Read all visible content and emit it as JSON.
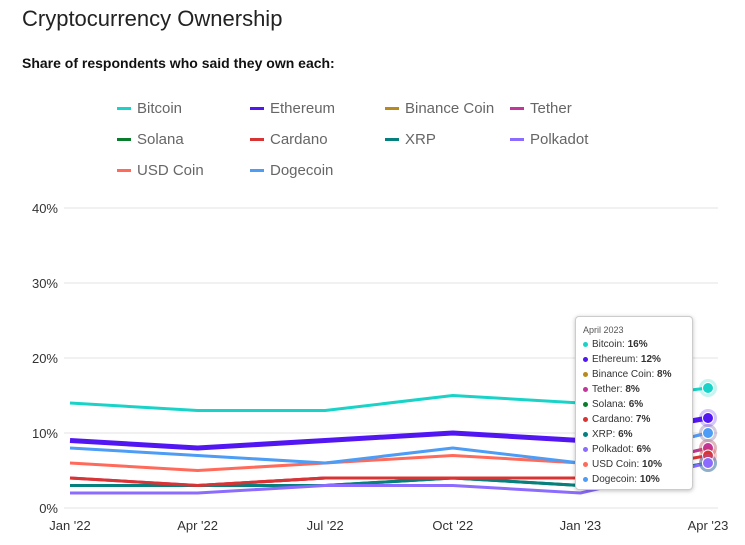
{
  "chart_data": {
    "type": "line",
    "title": "Cryptocurrency Ownership",
    "subtitle": "Share of respondents who said they own each:",
    "xlabel": "",
    "ylabel": "",
    "categories": [
      "Jan '22",
      "Apr '22",
      "Jul '22",
      "Oct '22",
      "Jan '23",
      "Apr '23"
    ],
    "y_ticks": [
      "0%",
      "10%",
      "20%",
      "30%",
      "40%"
    ],
    "ylim": [
      0,
      40
    ],
    "grid": true,
    "legend_position": "top",
    "series": [
      {
        "name": "Bitcoin",
        "color": "#1ad3c8",
        "values": [
          14,
          13,
          13,
          15,
          14,
          16
        ]
      },
      {
        "name": "Ethereum",
        "color": "#5216f2",
        "values": [
          9,
          8,
          9,
          10,
          9,
          12
        ]
      },
      {
        "name": "Binance Coin",
        "color": "#b88a1c",
        "values": [
          3,
          3,
          4,
          4,
          4,
          8
        ]
      },
      {
        "name": "Tether",
        "color": "#c2369a",
        "values": [
          4,
          3,
          4,
          4,
          4,
          8
        ]
      },
      {
        "name": "Solana",
        "color": "#0a7d2c",
        "values": [
          3,
          3,
          3,
          4,
          3,
          6
        ]
      },
      {
        "name": "Cardano",
        "color": "#d93434",
        "values": [
          4,
          3,
          4,
          4,
          4,
          7
        ]
      },
      {
        "name": "XRP",
        "color": "#067f7f",
        "values": [
          3,
          3,
          3,
          4,
          3,
          6
        ]
      },
      {
        "name": "Polkadot",
        "color": "#8b6cff",
        "values": [
          2,
          2,
          3,
          3,
          2,
          6
        ]
      },
      {
        "name": "USD Coin",
        "color": "#ff6a5a",
        "values": [
          6,
          5,
          6,
          7,
          6,
          10
        ]
      },
      {
        "name": "Dogecoin",
        "color": "#4d9cf5",
        "values": [
          8,
          7,
          6,
          8,
          6,
          10
        ]
      }
    ],
    "tooltip": {
      "title": "April 2023",
      "rows": [
        {
          "label": "Bitcoin:",
          "value": "16%"
        },
        {
          "label": "Ethereum:",
          "value": "12%"
        },
        {
          "label": "Binance Coin:",
          "value": "8%"
        },
        {
          "label": "Tether:",
          "value": "8%"
        },
        {
          "label": "Solana:",
          "value": "6%"
        },
        {
          "label": "Cardano:",
          "value": "7%"
        },
        {
          "label": "XRP:",
          "value": "6%"
        },
        {
          "label": "Polkadot:",
          "value": "6%"
        },
        {
          "label": "USD Coin:",
          "value": "10%"
        },
        {
          "label": "Dogecoin:",
          "value": "10%"
        }
      ]
    }
  }
}
